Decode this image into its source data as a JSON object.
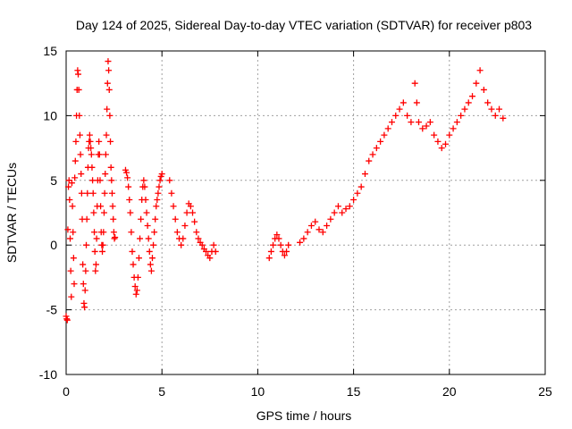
{
  "chart_data": {
    "type": "scatter",
    "title": "Day 124 of 2025, Sidereal Day-to-day VTEC variation (SDTVAR) for receiver p803",
    "xlabel": "GPS time / hours",
    "ylabel": "SDTVAR / TECUs",
    "xlim": [
      0,
      25
    ],
    "ylim": [
      -10,
      15
    ],
    "x_ticks": [
      0,
      5,
      10,
      15,
      20,
      25
    ],
    "x_tick_labels": [
      "0",
      "5",
      "10",
      "15",
      "20",
      "25"
    ],
    "y_ticks": [
      -10,
      -5,
      0,
      5,
      10,
      15
    ],
    "y_tick_labels": [
      "-10",
      "-5",
      "0",
      "5",
      "10",
      "15"
    ],
    "grid": true,
    "marker": "+",
    "series": [
      {
        "name": "SDTVAR",
        "color": "#ff0000",
        "x": [
          0.0,
          0.03,
          0.06,
          0.09,
          0.12,
          0.15,
          0.18,
          0.21,
          0.24,
          0.27,
          0.3,
          0.33,
          0.36,
          0.39,
          0.42,
          0.45,
          0.48,
          0.51,
          0.54,
          0.57,
          0.6,
          0.63,
          0.66,
          0.69,
          0.72,
          0.75,
          0.78,
          0.81,
          0.84,
          0.87,
          0.9,
          0.93,
          0.96,
          0.99,
          1.02,
          1.05,
          1.08,
          1.11,
          1.14,
          1.17,
          1.2,
          1.23,
          1.26,
          1.29,
          1.32,
          1.35,
          1.38,
          1.41,
          1.44,
          1.47,
          1.5,
          1.53,
          1.56,
          1.59,
          1.62,
          1.65,
          1.68,
          1.71,
          1.74,
          1.77,
          1.8,
          1.83,
          1.86,
          1.89,
          1.92,
          1.95,
          1.98,
          2.01,
          2.04,
          2.07,
          2.1,
          2.13,
          2.16,
          2.19,
          2.22,
          2.25,
          2.28,
          2.31,
          2.34,
          2.37,
          2.4,
          2.43,
          2.46,
          2.49,
          2.52,
          2.55,
          3.1,
          3.15,
          3.2,
          3.25,
          3.3,
          3.35,
          3.4,
          3.45,
          3.5,
          3.55,
          3.6,
          3.65,
          3.7,
          3.75,
          3.8,
          3.85,
          3.9,
          3.95,
          4.0,
          4.05,
          4.1,
          4.15,
          4.2,
          4.25,
          4.3,
          4.35,
          4.4,
          4.45,
          4.5,
          4.55,
          4.6,
          4.65,
          4.7,
          4.75,
          4.8,
          4.85,
          4.9,
          4.95,
          5.0,
          5.4,
          5.5,
          5.6,
          5.7,
          5.8,
          5.9,
          6.0,
          6.1,
          6.2,
          6.3,
          6.4,
          6.5,
          6.6,
          6.7,
          6.8,
          6.9,
          7.0,
          7.1,
          7.2,
          7.3,
          7.4,
          7.5,
          7.6,
          7.7,
          7.8,
          10.6,
          10.7,
          10.8,
          10.9,
          11.0,
          11.1,
          11.2,
          11.3,
          11.4,
          11.5,
          11.6,
          12.2,
          12.4,
          12.6,
          12.8,
          13.0,
          13.2,
          13.4,
          13.6,
          13.8,
          14.0,
          14.2,
          14.4,
          14.6,
          14.8,
          15.0,
          15.2,
          15.4,
          15.6,
          15.8,
          16.0,
          16.2,
          16.4,
          16.6,
          16.8,
          17.0,
          17.2,
          17.4,
          17.6,
          17.8,
          18.0,
          18.2,
          18.3,
          18.4,
          18.6,
          18.8,
          19.0,
          19.2,
          19.4,
          19.6,
          19.8,
          20.0,
          20.2,
          20.4,
          20.6,
          20.8,
          21.0,
          21.2,
          21.4,
          21.6,
          21.8,
          22.0,
          22.2,
          22.4,
          22.6,
          22.8
        ],
        "y": [
          -5.5,
          -5.7,
          -5.8,
          1.2,
          4.5,
          5.0,
          3.5,
          0.5,
          -2.0,
          -4.0,
          4.8,
          3.0,
          1.0,
          -1.0,
          -3.0,
          5.2,
          6.5,
          8.0,
          10.0,
          12.0,
          13.5,
          13.2,
          12.0,
          10.0,
          8.5,
          7.0,
          5.5,
          4.0,
          2.0,
          -1.5,
          -3.0,
          -4.5,
          -4.8,
          -3.5,
          -2.0,
          0.0,
          2.0,
          4.0,
          6.0,
          7.5,
          8.0,
          8.5,
          8.0,
          7.5,
          7.0,
          6.0,
          5.0,
          4.0,
          2.5,
          1.0,
          -0.5,
          -2.0,
          -1.5,
          0.5,
          3.0,
          5.0,
          7.0,
          8.0,
          7.0,
          5.0,
          3.0,
          1.0,
          0.0,
          -0.5,
          0.0,
          1.0,
          2.5,
          4.0,
          5.5,
          7.0,
          8.5,
          10.5,
          12.5,
          14.2,
          13.5,
          12.0,
          10.0,
          8.0,
          6.0,
          5.0,
          4.0,
          3.0,
          2.0,
          1.0,
          0.5,
          0.6,
          5.8,
          5.6,
          5.2,
          4.5,
          3.5,
          2.5,
          1.0,
          -0.5,
          -1.5,
          -2.5,
          -3.2,
          -3.8,
          -3.5,
          -2.5,
          -1.0,
          0.5,
          2.0,
          3.5,
          4.5,
          5.0,
          4.5,
          3.5,
          2.5,
          1.5,
          0.5,
          -0.5,
          -1.5,
          -2.0,
          -1.0,
          0.0,
          1.0,
          2.0,
          3.0,
          3.5,
          4.0,
          4.5,
          5.0,
          5.3,
          5.5,
          5.0,
          4.0,
          3.0,
          2.0,
          1.0,
          0.5,
          0.0,
          0.5,
          1.5,
          2.5,
          3.2,
          3.0,
          2.5,
          1.8,
          1.0,
          0.5,
          0.2,
          0.0,
          -0.3,
          -0.5,
          -0.8,
          -1.0,
          -0.5,
          0.0,
          -0.5,
          -1.0,
          -0.5,
          0.0,
          0.5,
          0.8,
          0.5,
          0.0,
          -0.5,
          -0.8,
          -0.5,
          0.0,
          0.2,
          0.5,
          1.0,
          1.5,
          1.8,
          1.2,
          1.0,
          1.5,
          2.0,
          2.5,
          3.0,
          2.5,
          2.8,
          3.0,
          3.5,
          4.0,
          4.5,
          5.5,
          6.5,
          7.0,
          7.5,
          8.0,
          8.5,
          9.0,
          9.5,
          10.0,
          10.5,
          11.0,
          10.0,
          9.5,
          12.5,
          11.0,
          9.5,
          9.0,
          9.2,
          9.5,
          8.5,
          8.0,
          7.5,
          7.8,
          8.5,
          9.0,
          9.5,
          10.0,
          10.5,
          11.0,
          11.5,
          12.5,
          13.5,
          12.0,
          11.0,
          10.5,
          10.0,
          10.5,
          9.8
        ]
      }
    ]
  }
}
